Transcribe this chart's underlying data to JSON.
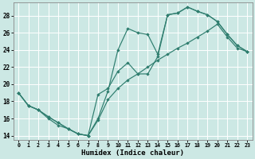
{
  "xlabel": "Humidex (Indice chaleur)",
  "xlim": [
    -0.5,
    23.5
  ],
  "ylim": [
    13.5,
    29.5
  ],
  "xticks": [
    0,
    1,
    2,
    3,
    4,
    5,
    6,
    7,
    8,
    9,
    10,
    11,
    12,
    13,
    14,
    15,
    16,
    17,
    18,
    19,
    20,
    21,
    22,
    23
  ],
  "yticks": [
    14,
    16,
    18,
    20,
    22,
    24,
    26,
    28
  ],
  "line_color": "#2e7d6e",
  "bg_color": "#cce8e4",
  "grid_color": "#ffffff",
  "line1_x": [
    0,
    1,
    2,
    3,
    4,
    5,
    6,
    7,
    8,
    9,
    10,
    11,
    12,
    13,
    14,
    15,
    16,
    17,
    18,
    19,
    20,
    21,
    22,
    23
  ],
  "line1_y": [
    19.0,
    17.5,
    17.0,
    16.2,
    15.5,
    14.8,
    14.2,
    14.0,
    16.0,
    19.2,
    24.0,
    26.5,
    26.0,
    25.8,
    23.5,
    28.1,
    28.3,
    29.0,
    28.5,
    28.1,
    27.3,
    25.8,
    24.5,
    23.8
  ],
  "line2_x": [
    0,
    1,
    2,
    3,
    4,
    5,
    6,
    7,
    8,
    9,
    10,
    11,
    12,
    13,
    14,
    15,
    16,
    17,
    18,
    19,
    20,
    21,
    22,
    23
  ],
  "line2_y": [
    19.0,
    17.5,
    17.0,
    16.2,
    15.5,
    14.8,
    14.2,
    14.0,
    18.8,
    19.5,
    21.5,
    22.5,
    21.2,
    21.2,
    23.2,
    28.1,
    28.3,
    29.0,
    28.5,
    28.1,
    27.3,
    25.8,
    24.5,
    23.8
  ],
  "line3_x": [
    0,
    1,
    2,
    3,
    4,
    5,
    6,
    7,
    8,
    9,
    10,
    11,
    12,
    13,
    14,
    15,
    16,
    17,
    18,
    19,
    20,
    21,
    22,
    23
  ],
  "line3_y": [
    19.0,
    17.5,
    17.0,
    16.0,
    15.2,
    14.8,
    14.2,
    14.0,
    15.8,
    18.2,
    19.5,
    20.5,
    21.2,
    22.0,
    22.8,
    23.5,
    24.2,
    24.8,
    25.5,
    26.2,
    27.0,
    25.5,
    24.2,
    23.8
  ]
}
